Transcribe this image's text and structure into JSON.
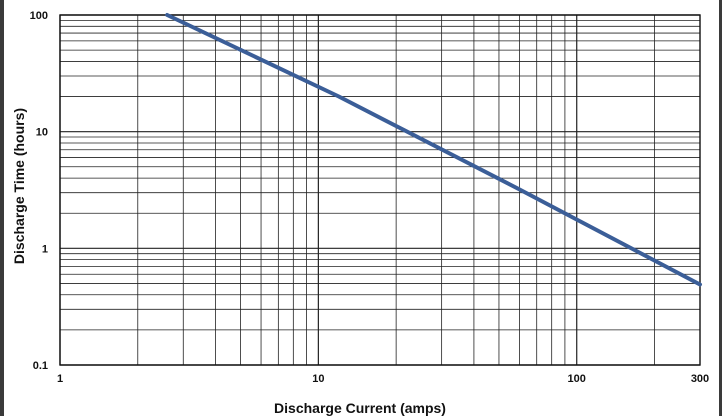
{
  "chart_data": {
    "type": "line",
    "xlabel": "Discharge Current (amps)",
    "ylabel": "Discharge Time (hours)",
    "x_scale": "log",
    "y_scale": "log",
    "xlim": [
      1,
      300
    ],
    "ylim": [
      0.1,
      100
    ],
    "x_ticks": [
      {
        "value": 1,
        "label": "1"
      },
      {
        "value": 10,
        "label": "10"
      },
      {
        "value": 100,
        "label": "100"
      },
      {
        "value": 300,
        "label": "300"
      }
    ],
    "y_ticks": [
      {
        "value": 100,
        "label": "100"
      },
      {
        "value": 10,
        "label": "10"
      },
      {
        "value": 1,
        "label": "1"
      },
      {
        "value": 0.1,
        "label": "0.1"
      }
    ],
    "grid": true,
    "series": [
      {
        "color": "#3b5e98",
        "x": [
          2.6,
          12,
          60,
          300
        ],
        "y": [
          100,
          20,
          3.2,
          0.49
        ]
      }
    ]
  }
}
